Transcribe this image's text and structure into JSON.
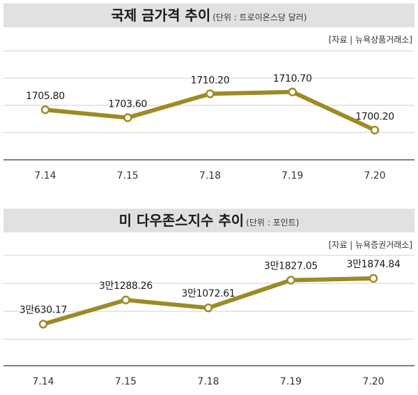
{
  "chart_data": [
    {
      "type": "line",
      "title": "국제 금가격 추이",
      "unit": "(단위 : 트로이온스당 달러)",
      "source": "[자료 | 뉴욕상품거래소]",
      "categories": [
        "7.14",
        "7.15",
        "7.18",
        "7.19",
        "7.20"
      ],
      "values": [
        1705.8,
        1703.6,
        1710.2,
        1710.7,
        1700.2
      ],
      "labels": [
        "1705.80",
        "1703.60",
        "1710.20",
        "1710.70",
        "1700.20"
      ],
      "ylim": [
        1692,
        1722
      ],
      "grid": true,
      "line_color": "#9e8a23"
    },
    {
      "type": "line",
      "title": "미 다우존스지수 추이",
      "unit": "(단위 : 포인트)",
      "source": "[자료 | 뉴욕증권거래소]",
      "categories": [
        "7.14",
        "7.15",
        "7.18",
        "7.19",
        "7.20"
      ],
      "values": [
        30630.17,
        31288.26,
        31072.61,
        31827.05,
        31874.84
      ],
      "labels": [
        "3만630.17",
        "3만1288.26",
        "3만1072.61",
        "3만1827.05",
        "3만1874.84"
      ],
      "ylim": [
        29500,
        32500
      ],
      "grid": true,
      "line_color": "#9e8a23"
    }
  ]
}
